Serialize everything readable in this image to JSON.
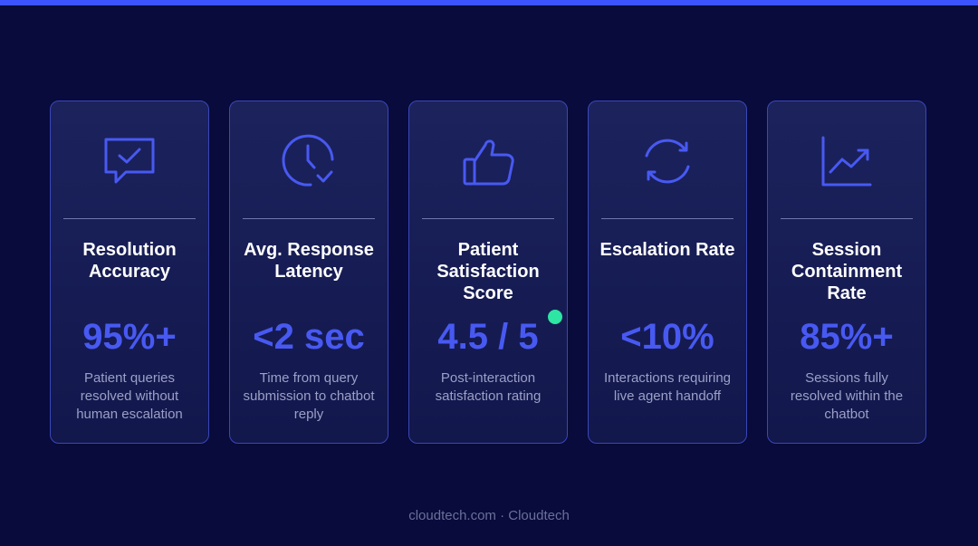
{
  "accent_color": "#3c54ff",
  "value_color": "#4859f2",
  "status_dot_color": "#2ee5a3",
  "cards": [
    {
      "icon": "chat-check-icon",
      "title": "Resolution Accuracy",
      "value": "95%+",
      "description": "Patient queries resolved without human escalation"
    },
    {
      "icon": "clock-check-icon",
      "title": "Avg. Response Latency",
      "value": "<2 sec",
      "description": "Time from query submission to chatbot reply"
    },
    {
      "icon": "thumbs-up-icon",
      "title": "Patient Satisfaction Score",
      "value": "4.5 / 5",
      "description": "Post-interaction satisfaction rating"
    },
    {
      "icon": "refresh-icon",
      "title": "Escalation Rate",
      "value": "<10%",
      "description": "Interactions requiring live agent handoff"
    },
    {
      "icon": "trend-up-chart-icon",
      "title": "Session Containment Rate",
      "value": "85%+",
      "description": "Sessions fully resolved within the chatbot"
    }
  ],
  "footer": "cloudtech.com · Cloudtech"
}
